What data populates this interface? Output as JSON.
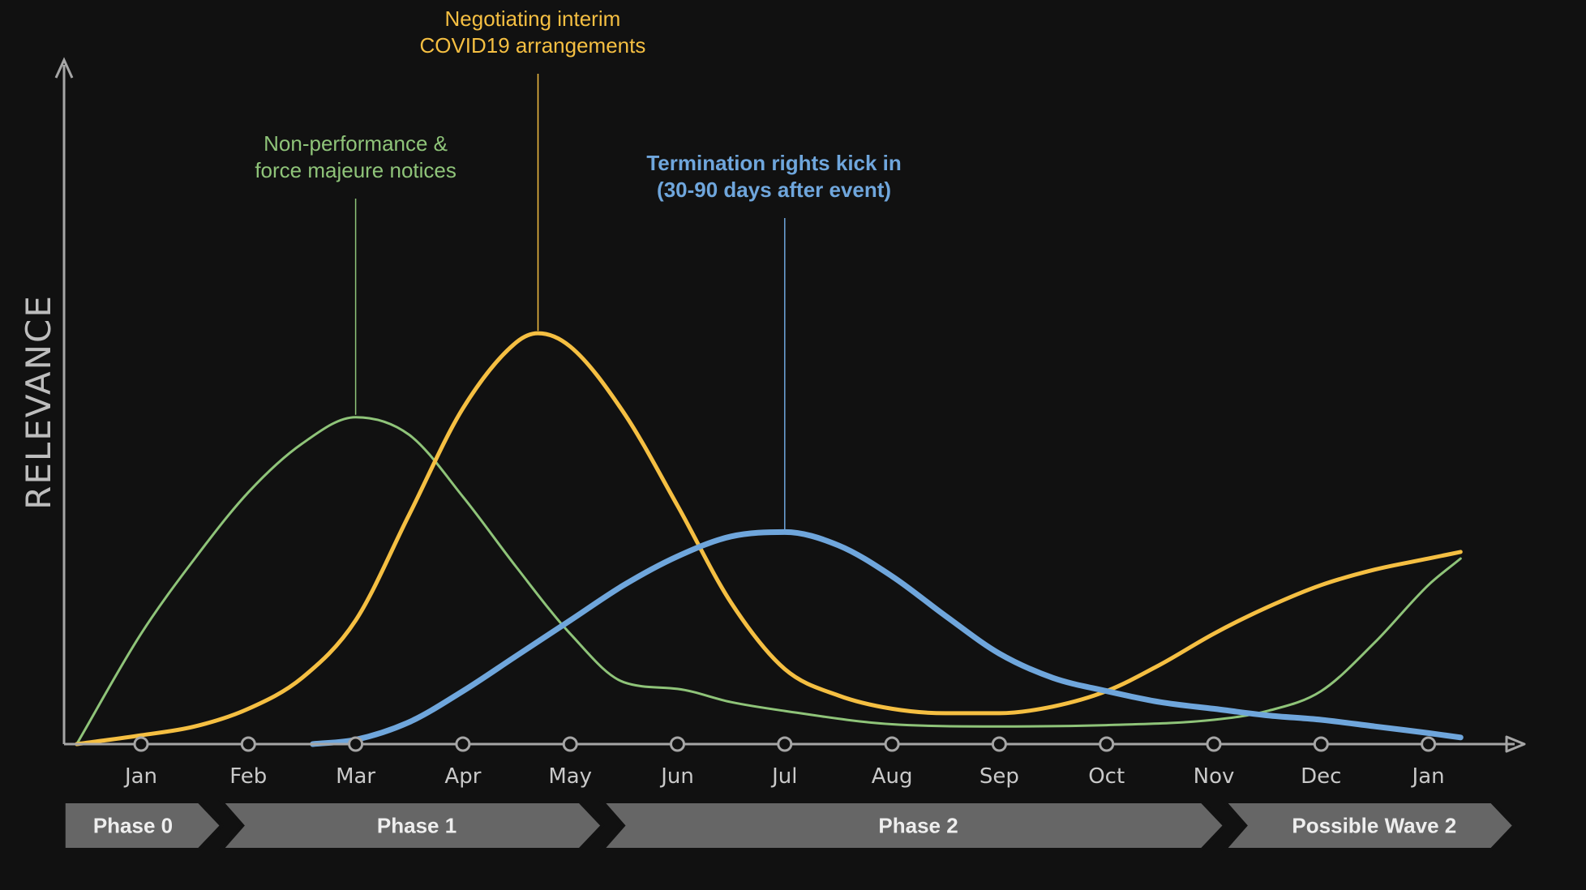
{
  "chart_data": {
    "type": "line",
    "title": "",
    "ylabel": "RELEVANCE",
    "xlabel": "",
    "grid": false,
    "legend": "none",
    "ylim": [
      0,
      100
    ],
    "categories": [
      "Jan",
      "Feb",
      "Mar",
      "Apr",
      "May",
      "Jun",
      "Jul",
      "Aug",
      "Sep",
      "Oct",
      "Nov",
      "Dec",
      "Jan"
    ],
    "series": [
      {
        "name": "Non-performance & force majeure notices",
        "color": "#8fc479",
        "width": 3,
        "x": [
          -0.6,
          0.0,
          0.5,
          1.0,
          1.5,
          2.0,
          2.5,
          3.0,
          3.5,
          4.0,
          4.5,
          5.0,
          5.5,
          6.0,
          7.0,
          8.0,
          9.0,
          10.0,
          10.5,
          11.0,
          11.5,
          12.0,
          12.3
        ],
        "values": [
          0,
          25,
          42,
          57,
          68,
          74,
          70,
          56,
          40,
          25,
          14,
          12.5,
          9.5,
          7.5,
          4.5,
          4.0,
          4.3,
          5.5,
          7.5,
          12,
          23,
          36,
          42
        ]
      },
      {
        "name": "Negotiating interim COVID19 arrangements",
        "color": "#f5bf42",
        "width": 5,
        "x": [
          -0.6,
          0.0,
          0.5,
          1.0,
          1.5,
          2.0,
          2.5,
          3.0,
          3.5,
          3.7,
          4.0,
          4.5,
          5.0,
          5.5,
          6.0,
          6.5,
          7.0,
          7.5,
          8.0,
          8.5,
          9.0,
          9.5,
          10.0,
          10.5,
          11.0,
          11.5,
          12.0,
          12.3
        ],
        "values": [
          0,
          2,
          4,
          8,
          15,
          28,
          52,
          76,
          91,
          93,
          90,
          75,
          54,
          32,
          17,
          11,
          8,
          7,
          7,
          8.5,
          12,
          18,
          25,
          31,
          36,
          39.5,
          42,
          43.5
        ]
      },
      {
        "name": "Termination rights kick in (30-90 days after event)",
        "color": "#6fa6dc",
        "width": 7,
        "x": [
          1.6,
          2.0,
          2.5,
          3.0,
          3.5,
          4.0,
          4.5,
          5.0,
          5.5,
          6.0,
          6.5,
          7.0,
          7.5,
          8.0,
          8.5,
          9.0,
          9.5,
          10.0,
          10.5,
          11.0,
          11.5,
          12.0,
          12.3
        ],
        "values": [
          0,
          1,
          5,
          12,
          20,
          28,
          36,
          42.5,
          47,
          48,
          45,
          38,
          29,
          20.5,
          15,
          12,
          9.5,
          8,
          6.5,
          5.5,
          4,
          2.5,
          1.5
        ]
      }
    ],
    "annotations": [
      {
        "lines": [
          "Non-performance &",
          "force majeure notices"
        ],
        "series": 0,
        "x": 2.0,
        "color": "#8fc479",
        "bold": false
      },
      {
        "lines": [
          "Negotiating interim",
          "COVID19 arrangements"
        ],
        "series": 1,
        "x": 3.65,
        "color": "#f5bf42",
        "bold": false
      },
      {
        "lines": [
          "Termination rights kick in",
          "(30-90 days after event)"
        ],
        "series": 2,
        "x": 5.9,
        "color": "#6fa6dc",
        "bold": true
      }
    ],
    "phases": [
      {
        "label": "Phase 0",
        "start": -0.72,
        "end": 0.75
      },
      {
        "label": "Phase 1",
        "start": 0.75,
        "end": 4.3
      },
      {
        "label": "Phase 2",
        "start": 4.3,
        "end": 10.1
      },
      {
        "label": "Possible Wave 2",
        "start": 10.1,
        "end": 12.8
      }
    ]
  }
}
